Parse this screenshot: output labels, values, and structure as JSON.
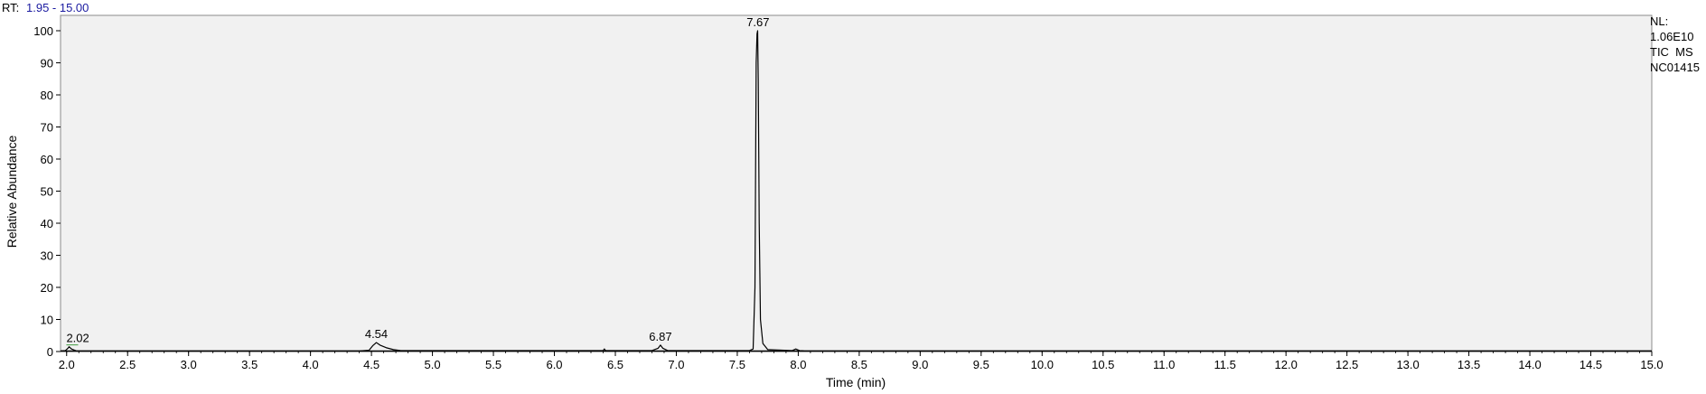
{
  "header": {
    "rt_prefix": "RT:",
    "rt_range": "1.95 - 15.00"
  },
  "info": {
    "lines": [
      "NL:",
      "1.06E10",
      "TIC  MS",
      "NC01415"
    ]
  },
  "colors": {
    "plot_bg": "#f1f1f1",
    "trace": "#000000",
    "rt_value": "#1a1aa0",
    "annotation_line": "#3c9a3c"
  },
  "chart_data": {
    "type": "line",
    "xlabel": "Time (min)",
    "ylabel": "Relative Abundance",
    "xlim": [
      1.95,
      15.0
    ],
    "ylim": [
      0,
      100
    ],
    "x_ticks": [
      2.0,
      2.5,
      3.0,
      3.5,
      4.0,
      4.5,
      5.0,
      5.5,
      6.0,
      6.5,
      7.0,
      7.5,
      8.0,
      8.5,
      9.0,
      9.5,
      10.0,
      10.5,
      11.0,
      11.5,
      12.0,
      12.5,
      13.0,
      13.5,
      14.0,
      14.5,
      15.0
    ],
    "x_tick_labels": [
      "2.0",
      "2.5",
      "3.0",
      "3.5",
      "4.0",
      "4.5",
      "5.0",
      "5.5",
      "6.0",
      "6.5",
      "7.0",
      "7.5",
      "8.0",
      "8.5",
      "9.0",
      "9.5",
      "10.0",
      "10.5",
      "11.0",
      "11.5",
      "12.0",
      "12.5",
      "13.0",
      "13.5",
      "14.0",
      "14.5",
      "15.0"
    ],
    "y_ticks": [
      0,
      10,
      20,
      30,
      40,
      50,
      60,
      70,
      80,
      90,
      100
    ],
    "y_tick_labels": [
      "0",
      "10",
      "20",
      "30",
      "40",
      "50",
      "60",
      "70",
      "80",
      "90",
      "100"
    ],
    "peaks": [
      {
        "rt": 2.02,
        "label": "2.02",
        "height": 1.5
      },
      {
        "rt": 4.54,
        "label": "4.54",
        "height": 2.8
      },
      {
        "rt": 6.87,
        "label": "6.87",
        "height": 2.0
      },
      {
        "rt": 7.67,
        "label": "7.67",
        "height": 100
      }
    ],
    "series": [
      {
        "x": [
          1.95,
          1.99,
          2.01,
          2.02,
          2.04,
          2.08,
          4.4,
          4.48,
          4.51,
          4.54,
          4.57,
          4.62,
          4.68,
          4.74,
          6.4,
          6.41,
          6.42,
          6.8,
          6.85,
          6.87,
          6.89,
          6.93,
          7.6,
          7.63,
          7.645,
          7.655,
          7.662,
          7.667,
          7.672,
          7.68,
          7.69,
          7.71,
          7.75,
          7.95,
          7.98,
          8.01,
          8.05,
          15.0
        ],
        "y": [
          0.2,
          0.3,
          1.0,
          1.5,
          0.8,
          0.2,
          0.2,
          0.4,
          1.8,
          2.8,
          2.0,
          1.2,
          0.6,
          0.3,
          0.3,
          0.8,
          0.3,
          0.3,
          1.0,
          2.0,
          1.0,
          0.3,
          0.3,
          0.8,
          20,
          90,
          99,
          100,
          85,
          40,
          10,
          2.5,
          0.6,
          0.3,
          0.8,
          0.3,
          0.2,
          0.2
        ]
      }
    ]
  }
}
